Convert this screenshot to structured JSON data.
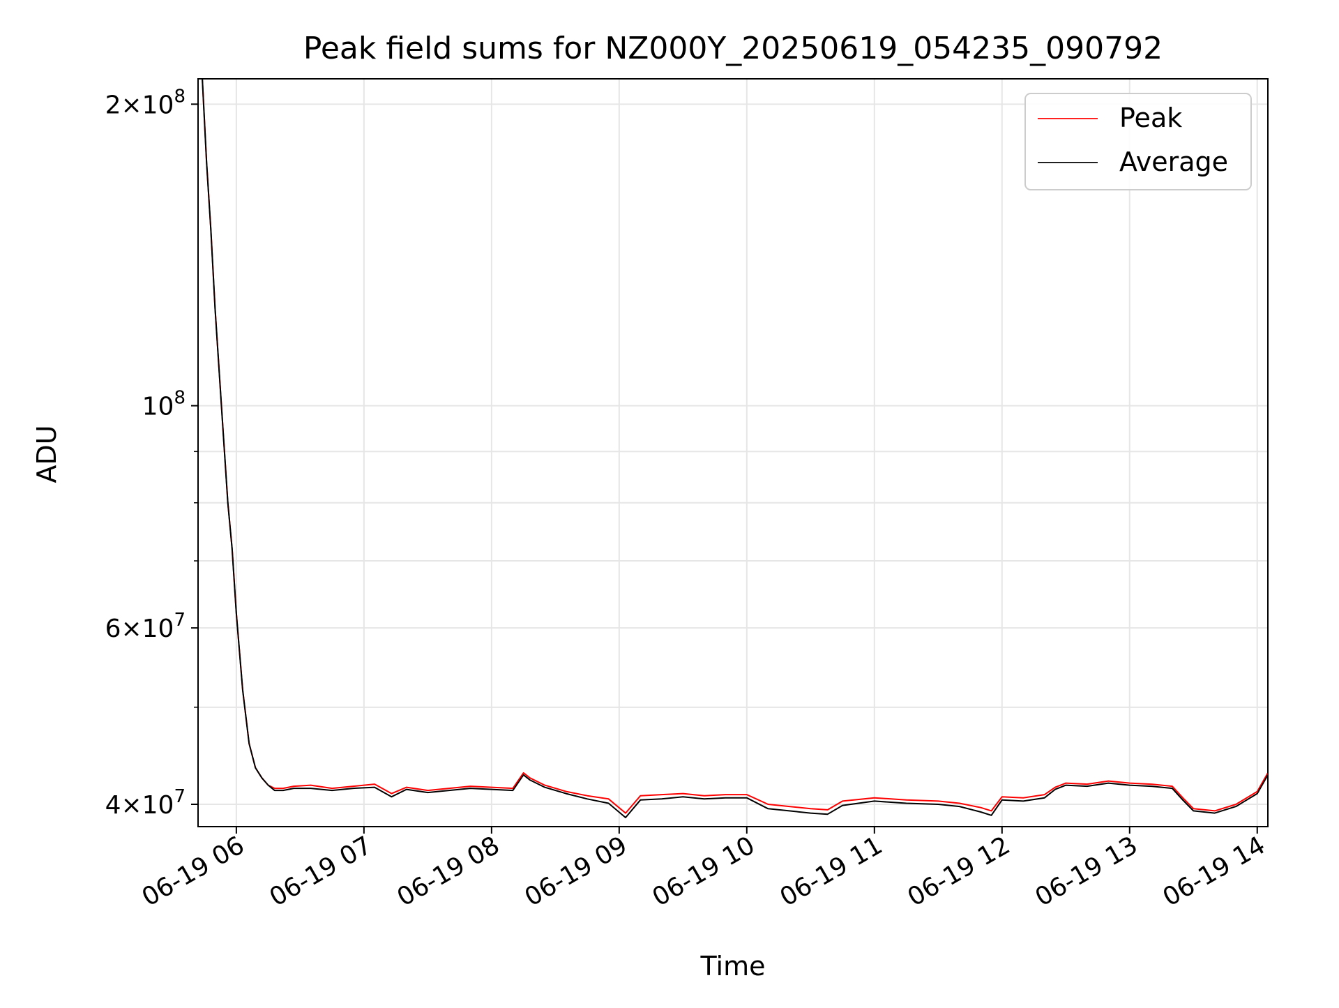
{
  "chart_data": {
    "type": "line",
    "title": "Peak field sums for NZ000Y_20250619_054235_090792",
    "xlabel": "Time",
    "ylabel": "ADU",
    "yscale": "log",
    "grid": true,
    "legend_position": "top-right",
    "xlim": [
      "2025-06-19 05:42",
      "2025-06-19 14:05"
    ],
    "ylim": [
      38000000,
      212000000
    ],
    "x_ticks": [
      {
        "value": "2025-06-19 06:00",
        "label": "06-19 06"
      },
      {
        "value": "2025-06-19 07:00",
        "label": "06-19 07"
      },
      {
        "value": "2025-06-19 08:00",
        "label": "06-19 08"
      },
      {
        "value": "2025-06-19 09:00",
        "label": "06-19 09"
      },
      {
        "value": "2025-06-19 10:00",
        "label": "06-19 10"
      },
      {
        "value": "2025-06-19 11:00",
        "label": "06-19 11"
      },
      {
        "value": "2025-06-19 12:00",
        "label": "06-19 12"
      },
      {
        "value": "2025-06-19 13:00",
        "label": "06-19 13"
      },
      {
        "value": "2025-06-19 14:00",
        "label": "06-19 14"
      }
    ],
    "y_major_ticks": [
      {
        "value": 40000000,
        "mantissa": "4",
        "exponent": "7"
      },
      {
        "value": 60000000,
        "mantissa": "6",
        "exponent": "7"
      },
      {
        "value": 100000000,
        "mantissa": "",
        "exponent": "8"
      },
      {
        "value": 200000000,
        "mantissa": "2",
        "exponent": "8"
      }
    ],
    "y_minor_ticks": [
      50000000,
      70000000,
      80000000,
      90000000
    ],
    "series": [
      {
        "name": "Peak",
        "color": "#ff0000",
        "x": [
          "2025-06-19 05:42",
          "2025-06-19 05:44",
          "2025-06-19 05:46",
          "2025-06-19 05:48",
          "2025-06-19 05:50",
          "2025-06-19 05:53",
          "2025-06-19 05:56",
          "2025-06-19 05:58",
          "2025-06-19 06:00",
          "2025-06-19 06:03",
          "2025-06-19 06:06",
          "2025-06-19 06:09",
          "2025-06-19 06:12",
          "2025-06-19 06:15",
          "2025-06-19 06:18",
          "2025-06-19 06:22",
          "2025-06-19 06:27",
          "2025-06-19 06:35",
          "2025-06-19 06:45",
          "2025-06-19 06:55",
          "2025-06-19 07:05",
          "2025-06-19 07:13",
          "2025-06-19 07:20",
          "2025-06-19 07:30",
          "2025-06-19 07:40",
          "2025-06-19 07:50",
          "2025-06-19 08:00",
          "2025-06-19 08:10",
          "2025-06-19 08:15",
          "2025-06-19 08:18",
          "2025-06-19 08:25",
          "2025-06-19 08:35",
          "2025-06-19 08:45",
          "2025-06-19 08:55",
          "2025-06-19 09:03",
          "2025-06-19 09:10",
          "2025-06-19 09:20",
          "2025-06-19 09:30",
          "2025-06-19 09:40",
          "2025-06-19 09:50",
          "2025-06-19 10:00",
          "2025-06-19 10:10",
          "2025-06-19 10:20",
          "2025-06-19 10:30",
          "2025-06-19 10:38",
          "2025-06-19 10:45",
          "2025-06-19 11:00",
          "2025-06-19 11:15",
          "2025-06-19 11:30",
          "2025-06-19 11:40",
          "2025-06-19 11:50",
          "2025-06-19 11:55",
          "2025-06-19 12:00",
          "2025-06-19 12:10",
          "2025-06-19 12:20",
          "2025-06-19 12:25",
          "2025-06-19 12:30",
          "2025-06-19 12:40",
          "2025-06-19 12:50",
          "2025-06-19 13:00",
          "2025-06-19 13:10",
          "2025-06-19 13:20",
          "2025-06-19 13:25",
          "2025-06-19 13:30",
          "2025-06-19 13:40",
          "2025-06-19 13:50",
          "2025-06-19 14:00",
          "2025-06-19 14:05"
        ],
        "y": [
          212000000,
          212000000,
          175000000,
          150000000,
          125000000,
          100000000,
          80000000,
          72000000,
          62000000,
          52000000,
          46000000,
          43500000,
          42500000,
          41800000,
          41500000,
          41500000,
          41700000,
          41800000,
          41500000,
          41700000,
          41900000,
          41000000,
          41600000,
          41300000,
          41500000,
          41700000,
          41600000,
          41500000,
          43000000,
          42500000,
          41800000,
          41200000,
          40800000,
          40500000,
          39200000,
          40800000,
          40900000,
          41000000,
          40800000,
          40900000,
          40900000,
          40000000,
          39800000,
          39600000,
          39500000,
          40300000,
          40600000,
          40400000,
          40300000,
          40100000,
          39700000,
          39400000,
          40700000,
          40600000,
          40900000,
          41600000,
          42000000,
          41900000,
          42200000,
          42000000,
          41900000,
          41700000,
          40600000,
          39600000,
          39400000,
          40000000,
          41200000,
          43000000
        ]
      },
      {
        "name": "Average",
        "color": "#000000",
        "x": [
          "2025-06-19 05:42",
          "2025-06-19 05:44",
          "2025-06-19 05:46",
          "2025-06-19 05:48",
          "2025-06-19 05:50",
          "2025-06-19 05:53",
          "2025-06-19 05:56",
          "2025-06-19 05:58",
          "2025-06-19 06:00",
          "2025-06-19 06:03",
          "2025-06-19 06:06",
          "2025-06-19 06:09",
          "2025-06-19 06:12",
          "2025-06-19 06:15",
          "2025-06-19 06:18",
          "2025-06-19 06:22",
          "2025-06-19 06:27",
          "2025-06-19 06:35",
          "2025-06-19 06:45",
          "2025-06-19 06:55",
          "2025-06-19 07:05",
          "2025-06-19 07:13",
          "2025-06-19 07:20",
          "2025-06-19 07:30",
          "2025-06-19 07:40",
          "2025-06-19 07:50",
          "2025-06-19 08:00",
          "2025-06-19 08:10",
          "2025-06-19 08:15",
          "2025-06-19 08:18",
          "2025-06-19 08:25",
          "2025-06-19 08:35",
          "2025-06-19 08:45",
          "2025-06-19 08:55",
          "2025-06-19 09:03",
          "2025-06-19 09:10",
          "2025-06-19 09:20",
          "2025-06-19 09:30",
          "2025-06-19 09:40",
          "2025-06-19 09:50",
          "2025-06-19 10:00",
          "2025-06-19 10:10",
          "2025-06-19 10:20",
          "2025-06-19 10:30",
          "2025-06-19 10:38",
          "2025-06-19 10:45",
          "2025-06-19 11:00",
          "2025-06-19 11:15",
          "2025-06-19 11:30",
          "2025-06-19 11:40",
          "2025-06-19 11:50",
          "2025-06-19 11:55",
          "2025-06-19 12:00",
          "2025-06-19 12:10",
          "2025-06-19 12:20",
          "2025-06-19 12:25",
          "2025-06-19 12:30",
          "2025-06-19 12:40",
          "2025-06-19 12:50",
          "2025-06-19 13:00",
          "2025-06-19 13:10",
          "2025-06-19 13:20",
          "2025-06-19 13:25",
          "2025-06-19 13:30",
          "2025-06-19 13:40",
          "2025-06-19 13:50",
          "2025-06-19 14:00",
          "2025-06-19 14:05"
        ],
        "y": [
          212000000,
          212000000,
          175000000,
          150000000,
          125000000,
          100000000,
          80000000,
          72000000,
          62000000,
          52000000,
          46000000,
          43500000,
          42500000,
          41800000,
          41300000,
          41300000,
          41500000,
          41500000,
          41300000,
          41500000,
          41600000,
          40700000,
          41400000,
          41100000,
          41300000,
          41500000,
          41400000,
          41300000,
          42800000,
          42300000,
          41600000,
          41000000,
          40500000,
          40100000,
          38800000,
          40400000,
          40500000,
          40700000,
          40500000,
          40600000,
          40600000,
          39600000,
          39400000,
          39200000,
          39100000,
          39900000,
          40300000,
          40100000,
          40000000,
          39800000,
          39300000,
          39000000,
          40400000,
          40300000,
          40600000,
          41400000,
          41800000,
          41700000,
          42000000,
          41800000,
          41700000,
          41500000,
          40400000,
          39400000,
          39200000,
          39800000,
          41000000,
          42800000
        ]
      }
    ]
  }
}
